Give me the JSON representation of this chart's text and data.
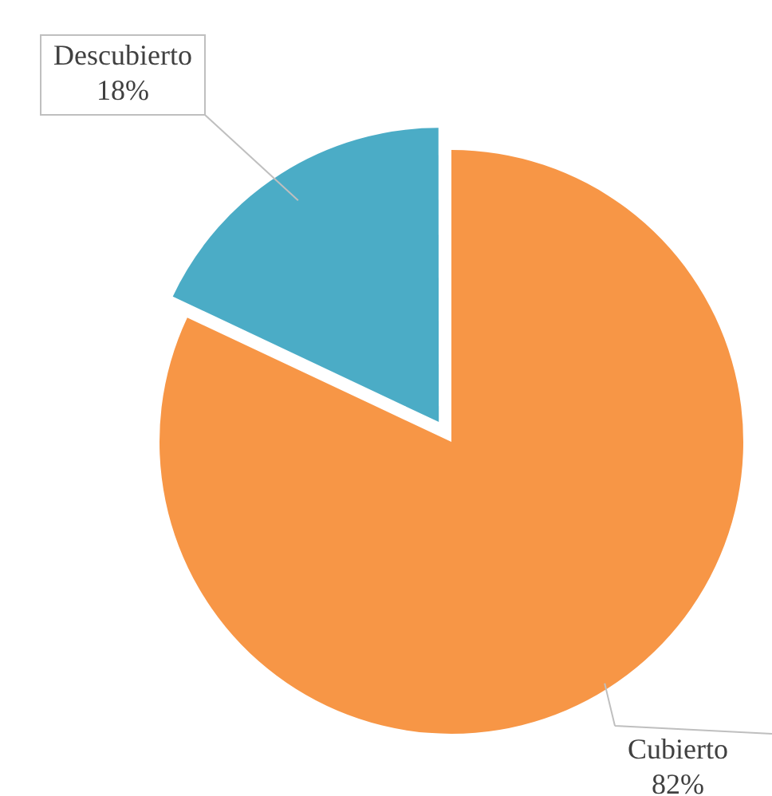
{
  "chart_data": {
    "type": "pie",
    "categories": [
      "Cubierto",
      "Descubierto"
    ],
    "values": [
      82,
      18
    ],
    "colors": [
      "#f79646",
      "#4bacc6"
    ],
    "value_labels": [
      "82%",
      "18%"
    ],
    "legend": false
  }
}
